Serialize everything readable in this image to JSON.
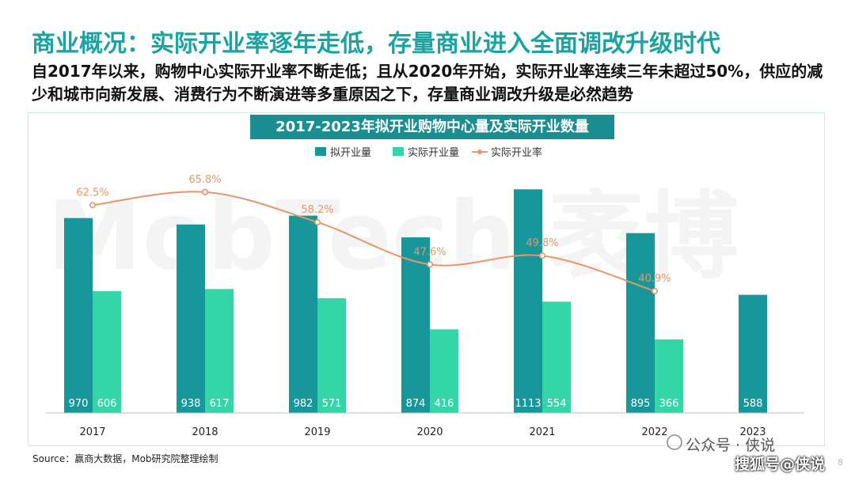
{
  "page": {
    "title": "商业概况：实际开业率逐年走低，存量商业进入全面调改升级时代",
    "subtitle": "自2017年以来，购物中心实际开业率不断走低；且从2020年开始，实际开业率连续三年未超过50%，供应的减少和城市向新发展、消费行为不断演进等多重原因之下，存量商业调改升级是必然趋势",
    "source": "Source：赢商大数据，Mob研究院整理绘制",
    "watermark": "MobTech 袤博",
    "wechat_mark": "公众号 · 侠说",
    "sohu_mark": "搜狐号@侠说",
    "page_number": "8"
  },
  "colors": {
    "title": "#1aa3a3",
    "header_bg": "#1a8e90",
    "planned": "#17979a",
    "actual": "#34d6a8",
    "rate": "#e9956a"
  },
  "chart_data": {
    "type": "bar",
    "title": "2017-2023年拟开业购物中心量及实际开业数量",
    "categories": [
      "2017",
      "2018",
      "2019",
      "2020",
      "2021",
      "2022",
      "2023"
    ],
    "series": [
      {
        "name": "拟开业量",
        "type": "bar",
        "values": [
          970,
          938,
          982,
          874,
          1113,
          895,
          588
        ],
        "labels": [
          "970",
          "938",
          "982",
          "874",
          "1113",
          "895",
          "588"
        ]
      },
      {
        "name": "实际开业量",
        "type": "bar",
        "values": [
          606,
          617,
          571,
          416,
          554,
          366,
          null
        ],
        "labels": [
          "606",
          "617",
          "571",
          "416",
          "554",
          "366",
          ""
        ]
      },
      {
        "name": "实际开业率",
        "type": "line",
        "values": [
          62.5,
          65.8,
          58.2,
          47.6,
          49.8,
          40.9,
          null
        ],
        "labels": [
          "62.5%",
          "65.8%",
          "58.2%",
          "47.6%",
          "49.8%",
          "40.9%",
          ""
        ]
      }
    ],
    "legend_position": "top-center",
    "grid": false
  }
}
